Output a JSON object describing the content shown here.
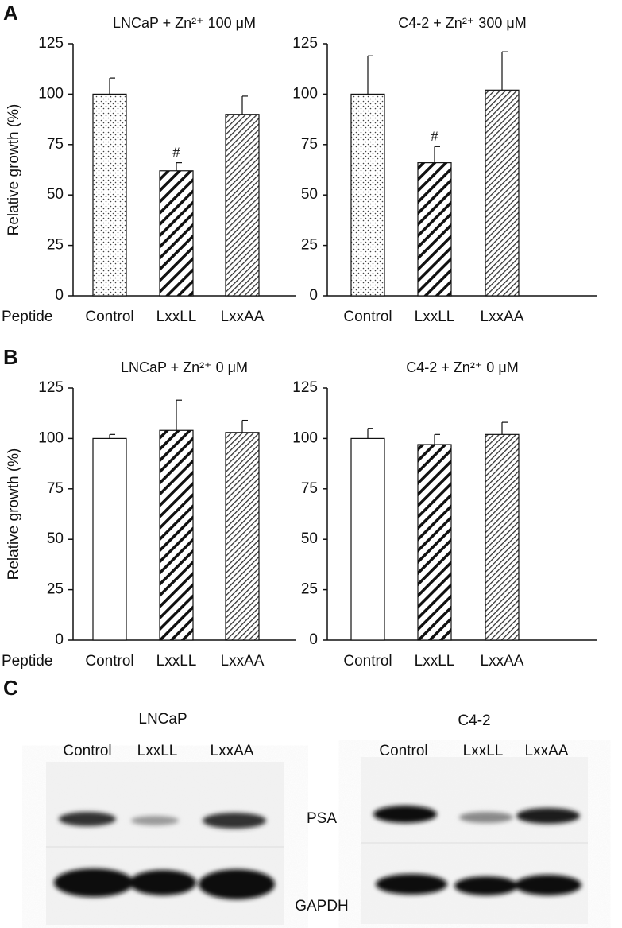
{
  "chart_data": [
    {
      "type": "bar",
      "panel": "A",
      "title": "LNCaP + Zn²⁺ 100 μM",
      "ylabel": "Relative growth (%)",
      "xlabel": "Peptide",
      "categories": [
        "Control",
        "LxxLL",
        "LxxAA"
      ],
      "values": [
        100,
        62,
        90
      ],
      "errors": [
        8,
        4,
        9
      ],
      "annotations": [
        null,
        "#",
        null
      ],
      "patterns": [
        "dots",
        "hatch-bold",
        "hatch-fine"
      ],
      "ylim": [
        0,
        125
      ],
      "yticks": [
        0,
        25,
        50,
        75,
        100,
        125
      ]
    },
    {
      "type": "bar",
      "title": "C4-2 + Zn²⁺ 300 μM",
      "categories": [
        "Control",
        "LxxLL",
        "LxxAA"
      ],
      "values": [
        100,
        66,
        102
      ],
      "errors": [
        19,
        8,
        19
      ],
      "annotations": [
        null,
        "#",
        null
      ],
      "patterns": [
        "dots",
        "hatch-bold",
        "hatch-fine"
      ],
      "ylim": [
        0,
        125
      ],
      "yticks": [
        0,
        25,
        50,
        75,
        100,
        125
      ]
    },
    {
      "type": "bar",
      "panel": "B",
      "title": "LNCaP + Zn²⁺ 0 μM",
      "ylabel": "Relative growth (%)",
      "xlabel": "Peptide",
      "categories": [
        "Control",
        "LxxLL",
        "LxxAA"
      ],
      "values": [
        100,
        104,
        103
      ],
      "errors": [
        2,
        15,
        6
      ],
      "patterns": [
        "white",
        "hatch-bold",
        "hatch-fine"
      ],
      "ylim": [
        0,
        125
      ],
      "yticks": [
        0,
        25,
        50,
        75,
        100,
        125
      ]
    },
    {
      "type": "bar",
      "title": "C4-2 + Zn²⁺ 0 μM",
      "categories": [
        "Control",
        "LxxLL",
        "LxxAA"
      ],
      "values": [
        100,
        97,
        102
      ],
      "errors": [
        5,
        5,
        6
      ],
      "patterns": [
        "white",
        "hatch-bold",
        "hatch-fine"
      ],
      "ylim": [
        0,
        125
      ],
      "yticks": [
        0,
        25,
        50,
        75,
        100,
        125
      ]
    }
  ],
  "blot": {
    "panel": "C",
    "groups": [
      {
        "name": "LNCaP",
        "lanes": [
          "Control",
          "LxxLL",
          "LxxAA"
        ]
      },
      {
        "name": "C4-2",
        "lanes": [
          "Control",
          "LxxLL",
          "LxxAA"
        ]
      }
    ],
    "rows": [
      "PSA",
      "GAPDH"
    ]
  }
}
